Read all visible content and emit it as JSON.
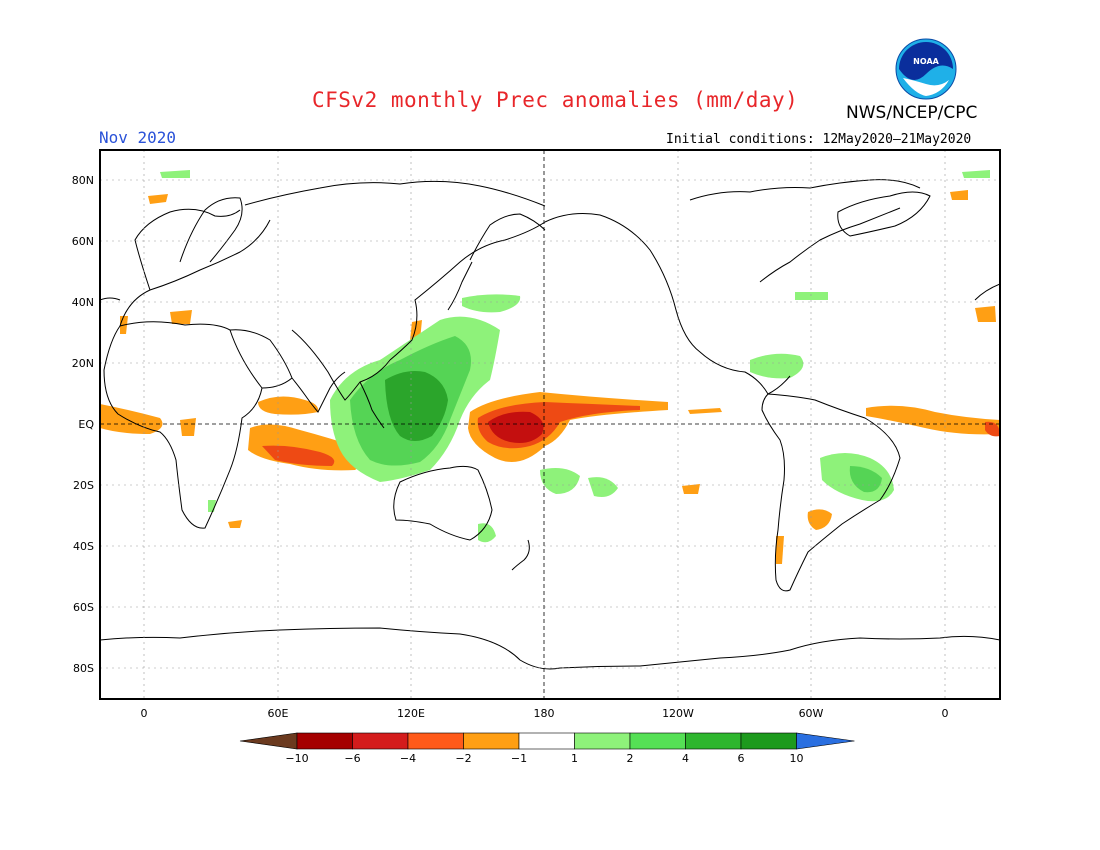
{
  "title": "CFSv2 monthly Prec anomalies (mm/day)",
  "agency": "NWS/NCEP/CPC",
  "logo_text": "NOAA",
  "month": "Nov 2020",
  "initial_conditions": "Initial conditions: 12May2020–21May2020",
  "lat_labels": [
    "80N",
    "60N",
    "40N",
    "20N",
    "EQ",
    "20S",
    "40S",
    "60S",
    "80S"
  ],
  "lon_labels": [
    "0",
    "60E",
    "120E",
    "180",
    "120W",
    "60W",
    "0"
  ],
  "colorbar": {
    "labels": [
      "−10",
      "−6",
      "−4",
      "−2",
      "−1",
      "1",
      "2",
      "4",
      "6",
      "10"
    ],
    "colors": [
      "#6b3a1f",
      "#a50000",
      "#d41c1c",
      "#ff5a1a",
      "#ff9f14",
      "#ffffff",
      "#8ef27a",
      "#55e055",
      "#2eb62e",
      "#1d9a1d",
      "#2a6fe0"
    ]
  },
  "anomaly_colors": {
    "dry_strong": "#c40f0f",
    "dry_mid": "#ee4a14",
    "dry_weak": "#ff9f14",
    "wet_weak": "#8ef27a",
    "wet_mid": "#55d455",
    "wet_strong": "#2ba52b"
  }
}
